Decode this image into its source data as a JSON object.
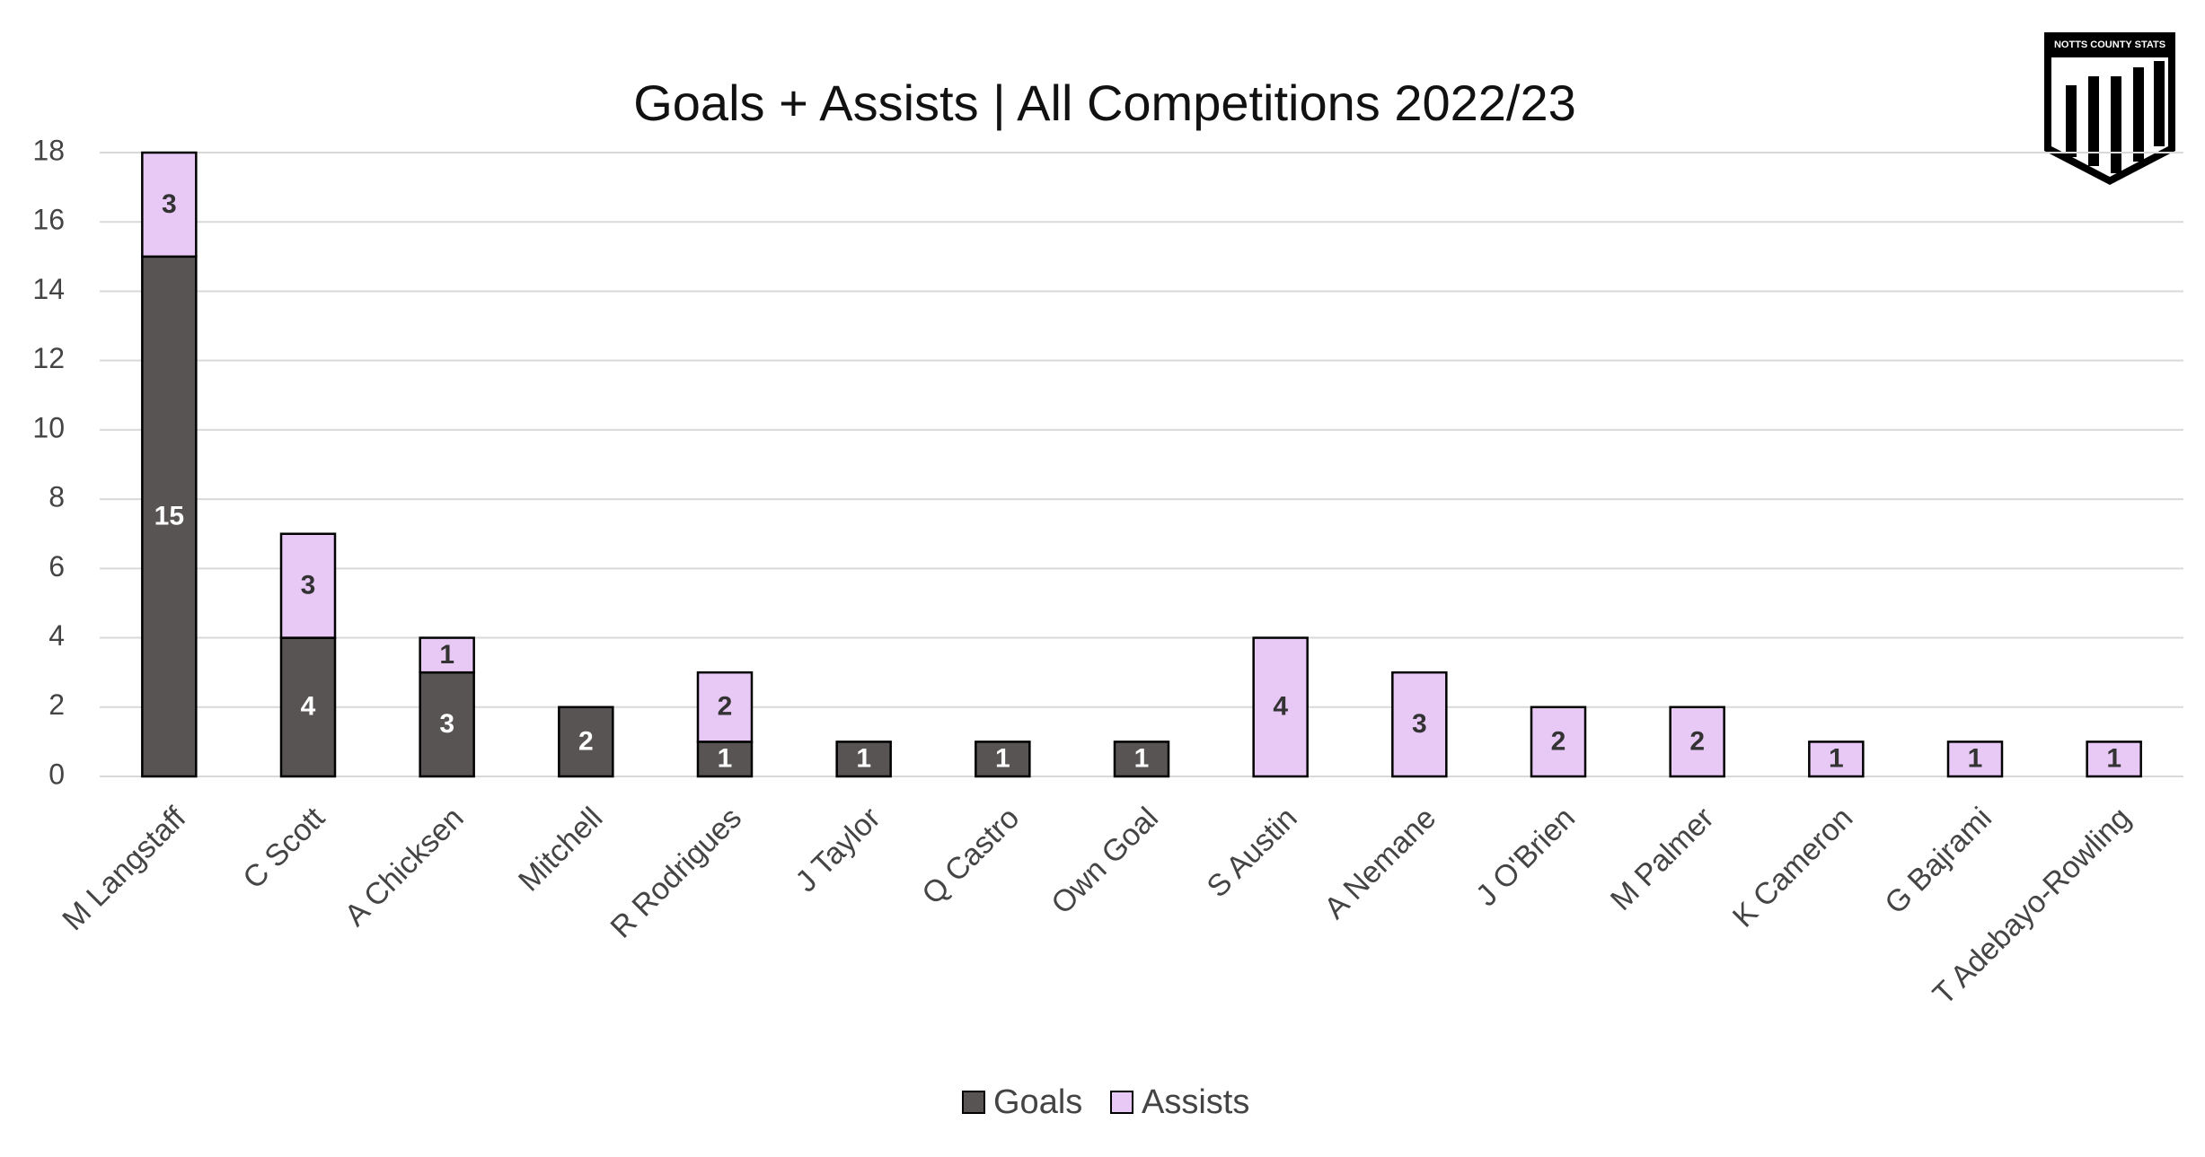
{
  "chart_data": {
    "type": "stacked_bar",
    "title": "Goals + Assists | All Competitions 2022/23",
    "categories": [
      "M Langstaff",
      "C Scott",
      "A Chicksen",
      "Mitchell",
      "R Rodrigues",
      "J Taylor",
      "Q Castro",
      "Own Goal",
      "S Austin",
      "A Nemane",
      "J O'Brien",
      "M Palmer",
      "K Cameron",
      "G Bajrami",
      "T Adebayo-Rowling"
    ],
    "series": [
      {
        "name": "Goals",
        "color": "#595454",
        "values": [
          15,
          4,
          3,
          2,
          1,
          1,
          1,
          1,
          0,
          0,
          0,
          0,
          0,
          0,
          0
        ]
      },
      {
        "name": "Assists",
        "color": "#e8c8f5",
        "values": [
          3,
          3,
          1,
          0,
          2,
          0,
          0,
          0,
          4,
          3,
          2,
          2,
          1,
          1,
          1
        ]
      }
    ],
    "ylim": [
      0,
      18
    ],
    "yticks": [
      0,
      2,
      4,
      6,
      8,
      10,
      12,
      14,
      16,
      18
    ],
    "grid": true,
    "legend": "bottom"
  },
  "logo": {
    "text": "NOTTS COUNTY STATS"
  }
}
